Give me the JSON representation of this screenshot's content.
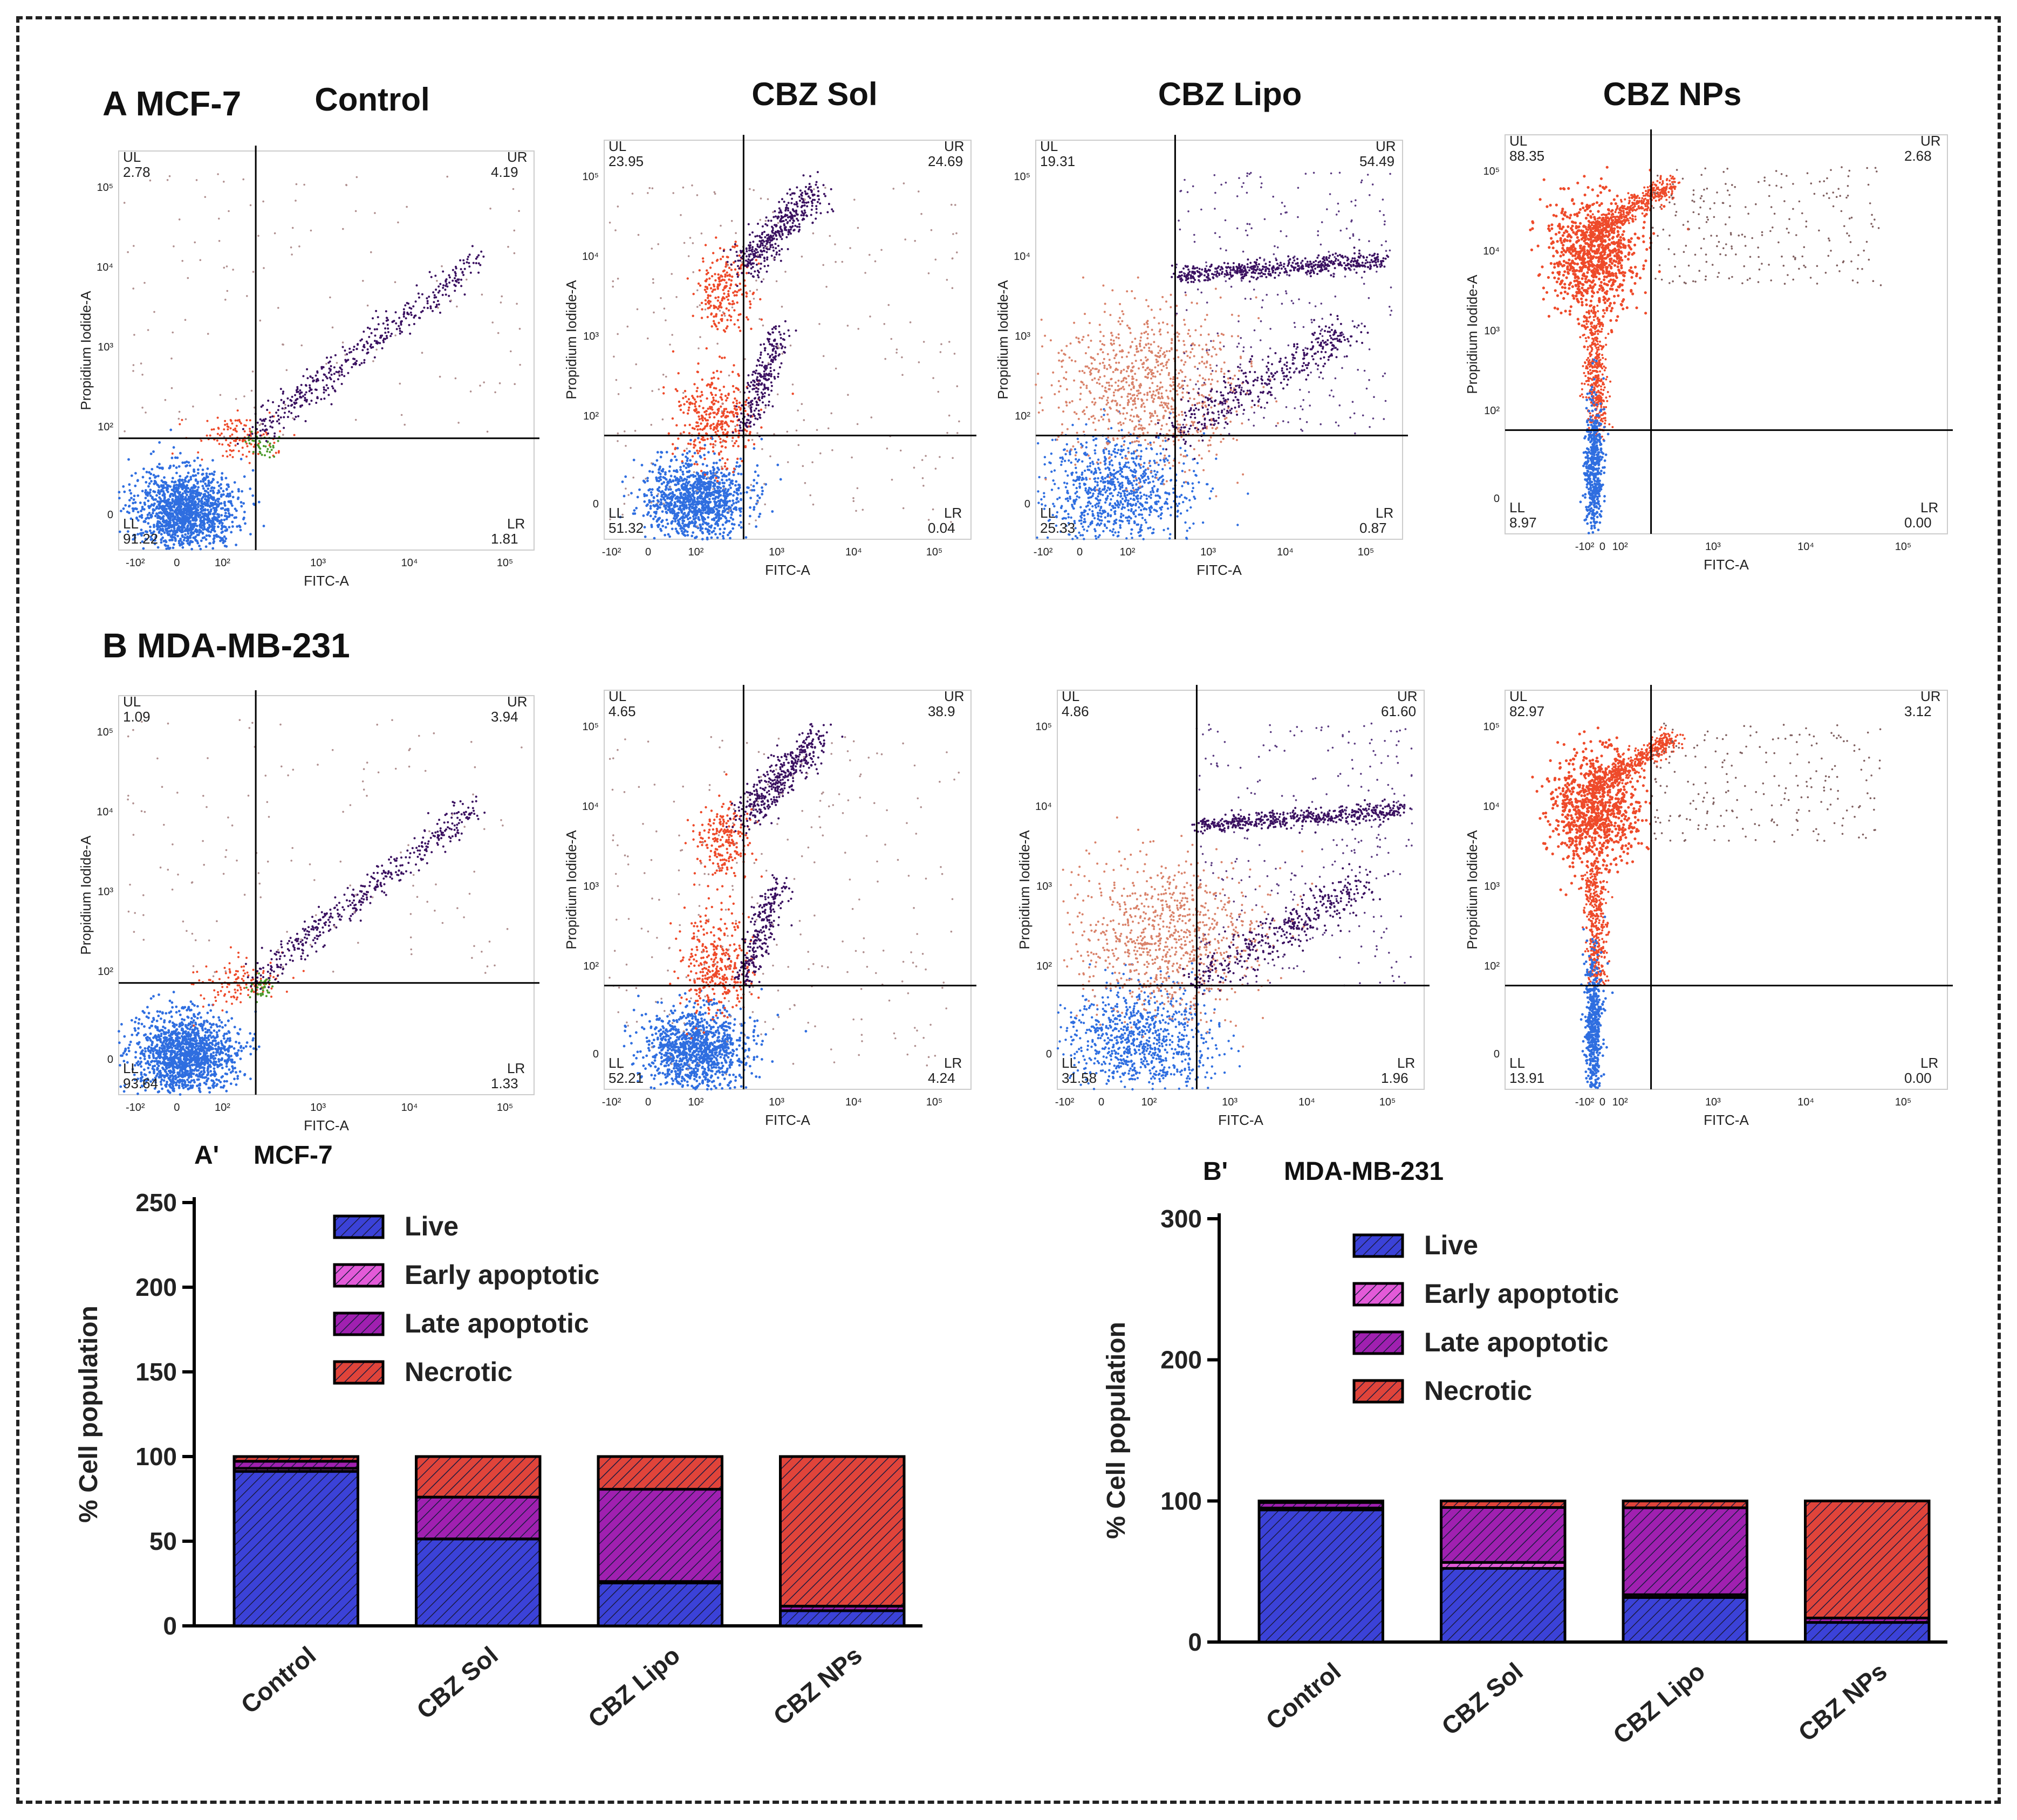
{
  "panel_a_label": "A MCF-7",
  "panel_b_label": "B MDA-MB-231",
  "column_titles": [
    "Control",
    "CBZ Sol",
    "CBZ Lipo",
    "CBZ NPs"
  ],
  "colors": {
    "live": "#3b42d8",
    "early": "#e35ad8",
    "late": "#a020b0",
    "necrotic": "#e0443a",
    "dot_live": "#2f6ee0",
    "dot_necrotic": "#ee4a2a",
    "dot_late": "#3a1060",
    "dot_early": "#4a9a2a"
  },
  "flow_axis": {
    "x_label": "FITC-A",
    "y_label": "Propidium Iodide-A",
    "x_ticks": [
      "-10²",
      "0",
      "10²",
      "10³",
      "10⁴",
      "10⁵"
    ],
    "y_ticks": [
      "0",
      "10²",
      "10³",
      "10⁴",
      "10⁵"
    ],
    "quadrants": [
      "UL",
      "UR",
      "LL",
      "LR"
    ]
  },
  "flow_plots": {
    "mcf7": [
      {
        "UL": "2.78",
        "UR": "4.19",
        "LL": "91.22",
        "LR": "1.81"
      },
      {
        "UL": "23.95",
        "UR": "24.69",
        "LL": "51.32",
        "LR": "0.04"
      },
      {
        "UL": "19.31",
        "UR": "54.49",
        "LL": "25.33",
        "LR": "0.87"
      },
      {
        "UL": "88.35",
        "UR": "2.68",
        "LL": "8.97",
        "LR": "0.00"
      }
    ],
    "mda": [
      {
        "UL": "1.09",
        "UR": "3.94",
        "LL": "93.64",
        "LR": "1.33"
      },
      {
        "UL": "4.65",
        "UR": "38.9",
        "LL": "52.21",
        "LR": "4.24"
      },
      {
        "UL": "4.86",
        "UR": "61.60",
        "LL": "31.58",
        "LR": "1.96"
      },
      {
        "UL": "82.97",
        "UR": "3.12",
        "LL": "13.91",
        "LR": "0.00"
      }
    ]
  },
  "chart_data": [
    {
      "type": "bar",
      "stacked": true,
      "panel": "A'",
      "title": "MCF-7",
      "ylabel": "% Cell population",
      "xlabel": "",
      "ylim": [
        0,
        250
      ],
      "yticks": [
        0,
        50,
        100,
        150,
        200,
        250
      ],
      "categories": [
        "Control",
        "CBZ Sol",
        "CBZ Lipo",
        "CBZ NPs"
      ],
      "series": [
        {
          "name": "Live",
          "key": "live",
          "values": [
            91.22,
            51.32,
            25.33,
            8.97
          ]
        },
        {
          "name": "Early apoptotic",
          "key": "early",
          "values": [
            1.81,
            0.04,
            0.87,
            0.0
          ]
        },
        {
          "name": "Late apoptotic",
          "key": "late",
          "values": [
            4.19,
            24.69,
            54.49,
            2.68
          ]
        },
        {
          "name": "Necrotic",
          "key": "necrotic",
          "values": [
            2.78,
            23.95,
            19.31,
            88.35
          ]
        }
      ],
      "legend": "top-left"
    },
    {
      "type": "bar",
      "stacked": true,
      "panel": "B'",
      "title": "MDA-MB-231",
      "ylabel": "% Cell population",
      "xlabel": "",
      "ylim": [
        0,
        300
      ],
      "yticks": [
        0,
        100,
        200,
        300
      ],
      "categories": [
        "Control",
        "CBZ Sol",
        "CBZ Lipo",
        "CBZ NPs"
      ],
      "series": [
        {
          "name": "Live",
          "key": "live",
          "values": [
            93.64,
            52.21,
            31.58,
            13.91
          ]
        },
        {
          "name": "Early apoptotic",
          "key": "early",
          "values": [
            1.33,
            4.24,
            1.96,
            0.0
          ]
        },
        {
          "name": "Late apoptotic",
          "key": "late",
          "values": [
            3.94,
            38.9,
            61.6,
            3.12
          ]
        },
        {
          "name": "Necrotic",
          "key": "necrotic",
          "values": [
            1.09,
            4.65,
            4.86,
            82.97
          ]
        }
      ],
      "legend": "top-left"
    }
  ]
}
